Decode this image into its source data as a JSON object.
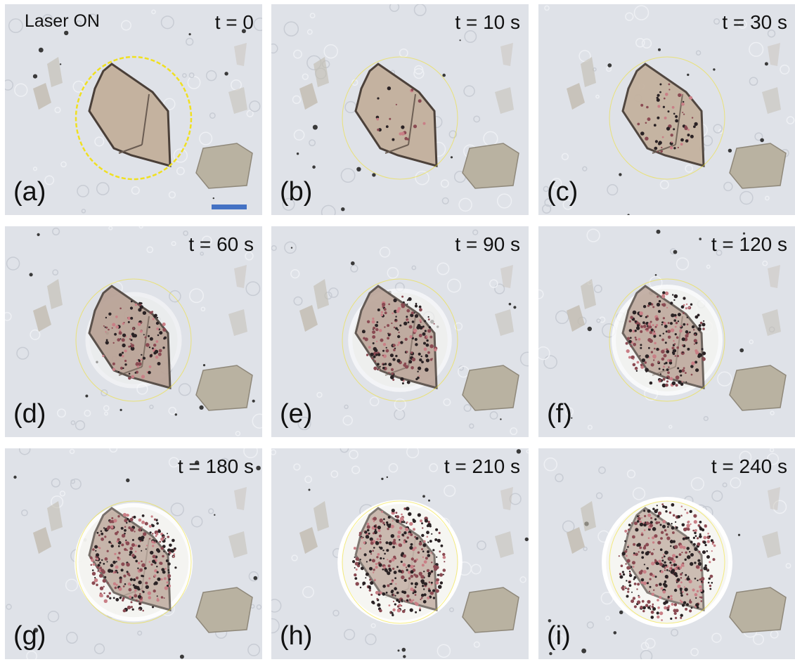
{
  "figure": {
    "laser_label": "Laser ON",
    "scale_bar_color": "#4472c4",
    "circle_color": "#f0e020",
    "panels": [
      {
        "label": "(a)",
        "time": "t = 0",
        "progress": 0.0
      },
      {
        "label": "(b)",
        "time": "t = 10 s",
        "progress": 0.05
      },
      {
        "label": "(c)",
        "time": "t = 30 s",
        "progress": 0.15
      },
      {
        "label": "(d)",
        "time": "t = 60 s",
        "progress": 0.3
      },
      {
        "label": "(e)",
        "time": "t = 90 s",
        "progress": 0.45
      },
      {
        "label": "(f)",
        "time": "t = 120 s",
        "progress": 0.6
      },
      {
        "label": "(g)",
        "time": "t = 180 s",
        "progress": 0.75
      },
      {
        "label": "(h)",
        "time": "t = 210 s",
        "progress": 0.88
      },
      {
        "label": "(i)",
        "time": "t = 240 s",
        "progress": 1.0
      }
    ]
  }
}
